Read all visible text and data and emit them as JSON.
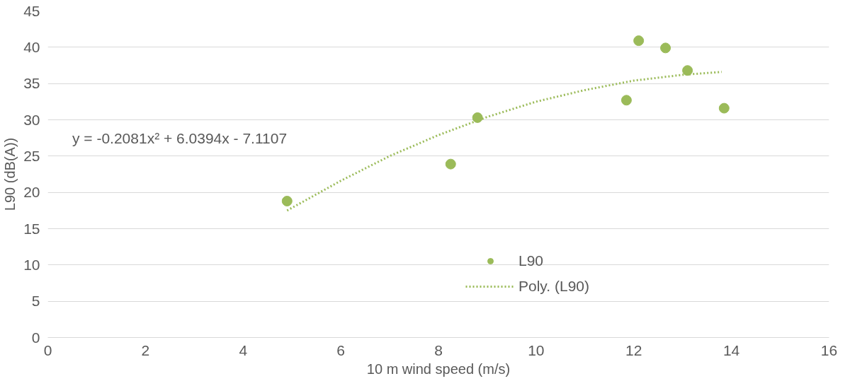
{
  "chart_data": {
    "type": "scatter",
    "xlabel": "10 m wind speed (m/s)",
    "ylabel": "L90 (dB(A))",
    "xlim": [
      0,
      16
    ],
    "xticks": [
      0,
      2,
      4,
      6,
      8,
      10,
      12,
      14,
      16
    ],
    "ylim": [
      0,
      45
    ],
    "yticks": [
      0,
      5,
      10,
      15,
      20,
      25,
      30,
      35,
      40,
      45
    ],
    "grid": "y",
    "legend": "bottom",
    "annotations": [
      "y = -0.2081x² + 6.0394x - 7.1107"
    ],
    "series": [
      {
        "name": "L90",
        "marker": "circle",
        "color": "#9bbb59",
        "x": [
          4.9,
          8.25,
          8.8,
          11.85,
          12.1,
          12.65,
          13.1,
          13.85
        ],
        "values": [
          18.8,
          23.9,
          30.3,
          32.7,
          40.9,
          39.9,
          36.8,
          31.6
        ]
      },
      {
        "name": "Poly. (L90)",
        "type": "line",
        "marker": "none",
        "line_style": "dotted",
        "color": "#9bbb59",
        "x": [
          4.9,
          6,
          7,
          8,
          9,
          10,
          11,
          12,
          13,
          13.8
        ],
        "values": [
          17.5,
          21.6,
          25.0,
          27.9,
          30.4,
          32.5,
          34.1,
          35.4,
          36.2,
          36.6
        ]
      }
    ]
  }
}
